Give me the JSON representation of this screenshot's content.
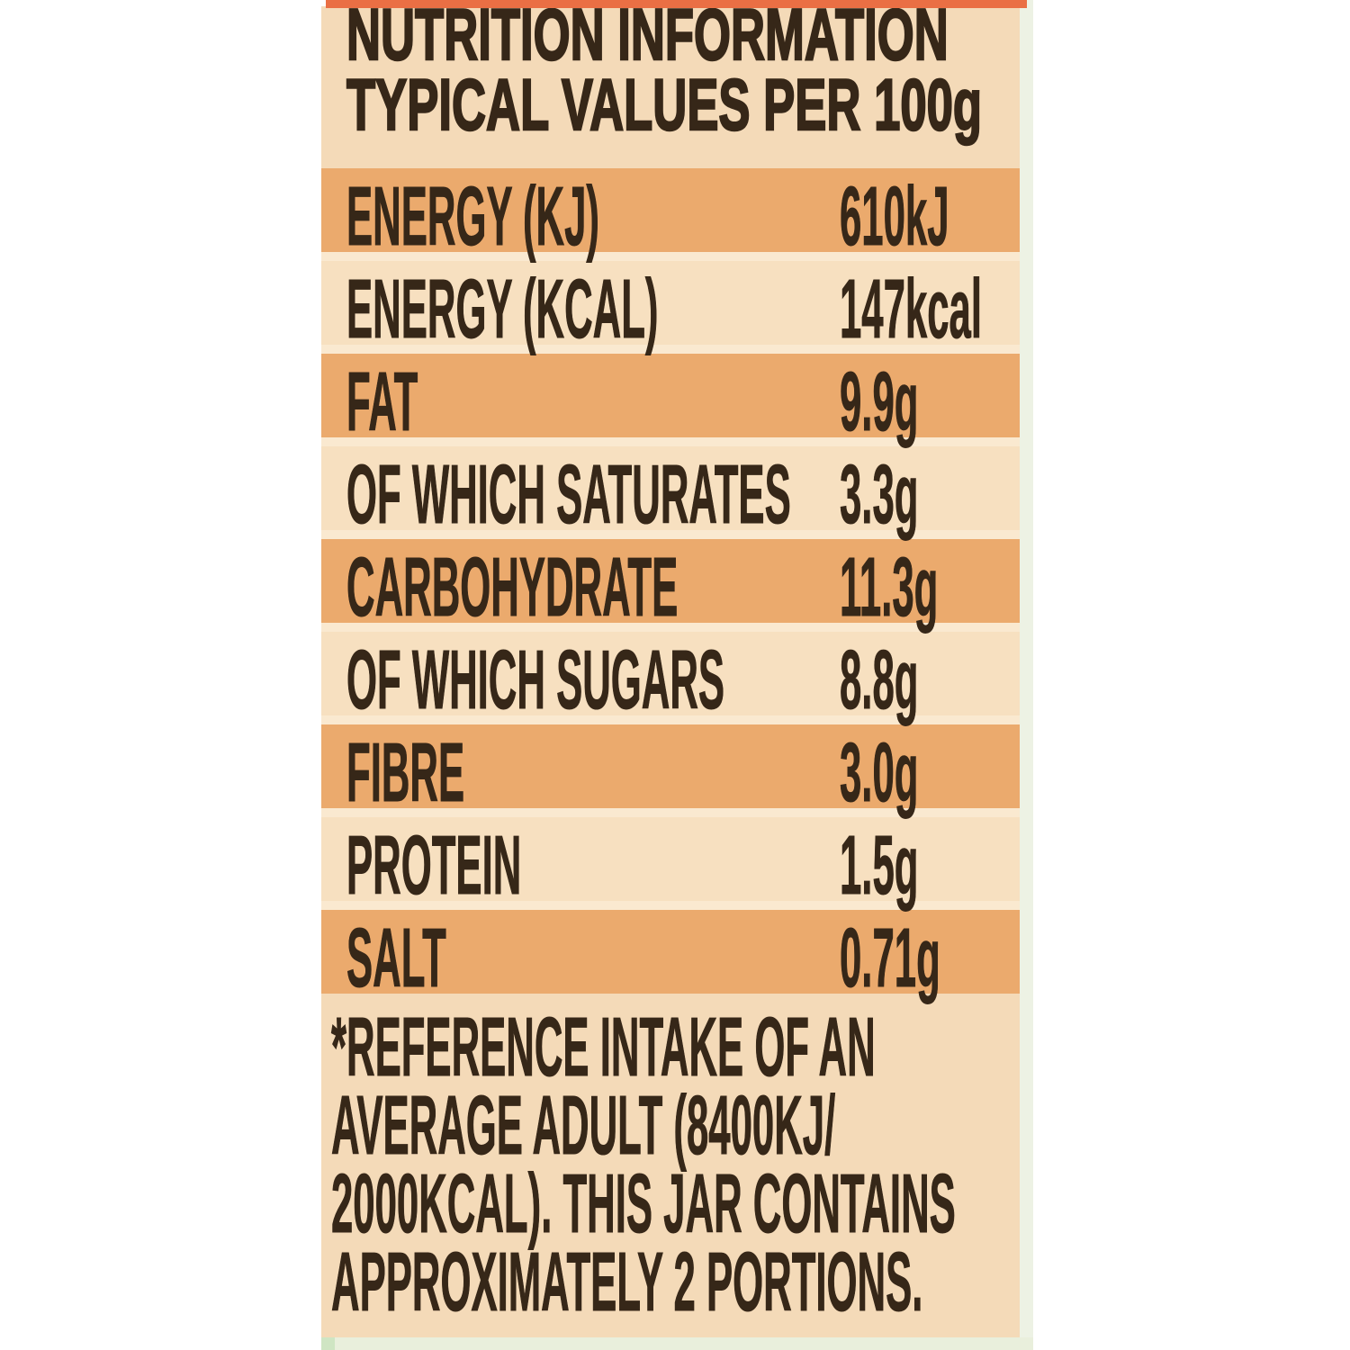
{
  "panel": {
    "title_line1": "NUTRITION INFORMATION",
    "title_line2": "TYPICAL VALUES PER 100g",
    "rows": [
      {
        "label": "ENERGY (KJ)",
        "value": "610kJ",
        "shaded": true
      },
      {
        "label": "ENERGY (KCAL)",
        "value": "147kcal",
        "shaded": false
      },
      {
        "label": "FAT",
        "value": "9.9g",
        "shaded": true
      },
      {
        "label": "OF WHICH SATURATES",
        "value": "3.3g",
        "shaded": false
      },
      {
        "label": "CARBOHYDRATE",
        "value": "11.3g",
        "shaded": true
      },
      {
        "label": "OF WHICH SUGARS",
        "value": "8.8g",
        "shaded": false
      },
      {
        "label": "FIBRE",
        "value": "3.0g",
        "shaded": true
      },
      {
        "label": "PROTEIN",
        "value": "1.5g",
        "shaded": false
      },
      {
        "label": "SALT",
        "value": "0.71g",
        "shaded": true
      }
    ],
    "footnote_lines": [
      "*REFERENCE INTAKE OF AN",
      "AVERAGE ADULT (8400KJ/",
      "2000KCAL). THIS JAR CONTAINS",
      "APPROXIMATELY 2 PORTIONS."
    ]
  },
  "colors": {
    "page_background": "#ffffff",
    "panel_bg": "#f4dab8",
    "row_shade": "#ebaa6d",
    "row_light": "#f7e0c0",
    "row_gap": "#fae9d0",
    "top_strip": "#ea6f44",
    "bottom_strip": "#e9efdc",
    "bottom_accent": "#cfe5c3",
    "right_strip": "#edf2e4",
    "text": "#362718"
  }
}
